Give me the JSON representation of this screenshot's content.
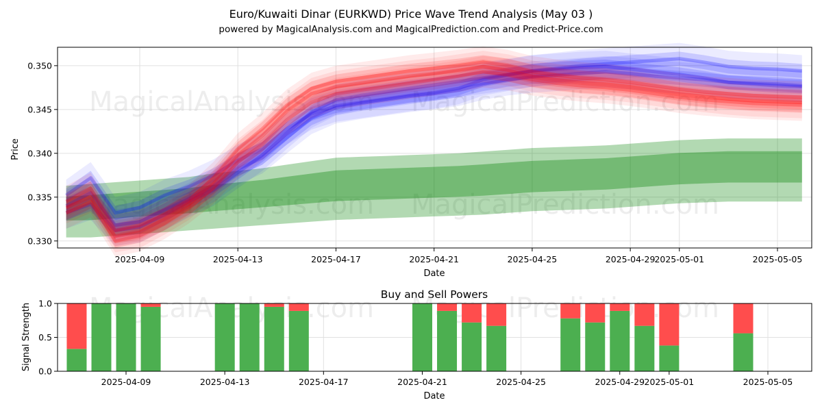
{
  "chart_data": [
    {
      "type": "area",
      "title": "Euro/Kuwaiti Dinar (EURKWD) Price Wave Trend Analysis (May 03 )",
      "subtitle": "powered by MagicalAnalysis.com and MagicalPrediction.com and Predict-Price.com",
      "xlabel": "Date",
      "ylabel": "Price",
      "x_ticks": [
        "2025-04-09",
        "2025-04-13",
        "2025-04-17",
        "2025-04-21",
        "2025-04-25",
        "2025-04-29",
        "2025-05-01",
        "2025-05-05"
      ],
      "y_ticks": [
        "0.330",
        "0.335",
        "0.340",
        "0.345",
        "0.350"
      ],
      "ylim": [
        0.3292,
        0.3521
      ],
      "grid": true,
      "x_dates": [
        "2025-04-06",
        "2025-04-07",
        "2025-04-08",
        "2025-04-09",
        "2025-04-10",
        "2025-04-11",
        "2025-04-12",
        "2025-04-13",
        "2025-04-14",
        "2025-04-15",
        "2025-04-16",
        "2025-04-17",
        "2025-04-18",
        "2025-04-19",
        "2025-04-20",
        "2025-04-21",
        "2025-04-22",
        "2025-04-23",
        "2025-04-24",
        "2025-04-25",
        "2025-04-26",
        "2025-04-27",
        "2025-04-28",
        "2025-04-29",
        "2025-04-30",
        "2025-05-01",
        "2025-05-02",
        "2025-05-03",
        "2025-05-04",
        "2025-05-05",
        "2025-05-06"
      ],
      "series": [
        {
          "color": "#0000ff",
          "values": [
            0.3352,
            0.3372,
            0.3332,
            0.3338,
            0.3352,
            0.3362,
            0.3375,
            0.3392,
            0.3405,
            0.3428,
            0.3445,
            0.3454,
            0.3458,
            0.3462,
            0.3466,
            0.3469,
            0.3474,
            0.3484,
            0.3489,
            0.3494,
            0.3496,
            0.3498,
            0.3499,
            0.3496,
            0.3493,
            0.349,
            0.3486,
            0.3481,
            0.348,
            0.3479,
            0.3477
          ]
        },
        {
          "color": "#0000ff",
          "values": [
            0.3332,
            0.3342,
            0.3312,
            0.3316,
            0.333,
            0.3345,
            0.3358,
            0.3378,
            0.3398,
            0.3423,
            0.3447,
            0.3461,
            0.3466,
            0.347,
            0.3474,
            0.3478,
            0.3482,
            0.3486,
            0.349,
            0.3494,
            0.3497,
            0.35,
            0.3502,
            0.3504,
            0.3506,
            0.3508,
            0.3504,
            0.3499,
            0.3497,
            0.3496,
            0.3494
          ]
        },
        {
          "color": "#0000ff",
          "values": [
            0.334,
            0.3355,
            0.3318,
            0.3322,
            0.3335,
            0.3348,
            0.3362,
            0.3382,
            0.3395,
            0.3418,
            0.344,
            0.3452,
            0.3457,
            0.3461,
            0.3465,
            0.3468,
            0.3472,
            0.3479,
            0.3484,
            0.3487,
            0.3489,
            0.3491,
            0.3493,
            0.3491,
            0.3488,
            0.3486,
            0.3484,
            0.3481,
            0.3479,
            0.3477,
            0.3476
          ]
        },
        {
          "color": "#ff0000",
          "values": [
            0.3338,
            0.335,
            0.3305,
            0.331,
            0.3325,
            0.3342,
            0.3366,
            0.3398,
            0.342,
            0.3448,
            0.3468,
            0.3476,
            0.348,
            0.3484,
            0.3488,
            0.3491,
            0.3495,
            0.3499,
            0.3495,
            0.3488,
            0.3484,
            0.3481,
            0.3479,
            0.3476,
            0.3472,
            0.3468,
            0.3465,
            0.3462,
            0.346,
            0.3459,
            0.3458
          ]
        },
        {
          "color": "#ff0000",
          "values": [
            0.3332,
            0.3345,
            0.33,
            0.3306,
            0.332,
            0.3338,
            0.336,
            0.339,
            0.341,
            0.3438,
            0.3458,
            0.3468,
            0.3472,
            0.3476,
            0.348,
            0.3484,
            0.3488,
            0.3493,
            0.349,
            0.3484,
            0.348,
            0.3477,
            0.3475,
            0.3472,
            0.3468,
            0.3464,
            0.3461,
            0.3459,
            0.3457,
            0.3456,
            0.3455
          ]
        },
        {
          "color": "#ff0000",
          "values": [
            0.3345,
            0.336,
            0.3312,
            0.3318,
            0.333,
            0.3346,
            0.3372,
            0.3405,
            0.3428,
            0.3455,
            0.3474,
            0.3482,
            0.3486,
            0.349,
            0.3494,
            0.3497,
            0.35,
            0.3504,
            0.35,
            0.3493,
            0.3489,
            0.3486,
            0.3484,
            0.3481,
            0.3477,
            0.3473,
            0.347,
            0.3468,
            0.3466,
            0.3465,
            0.3464
          ]
        }
      ],
      "green_band": {
        "color": "#008000",
        "upper": [
          0.3358,
          0.336,
          0.3362,
          0.3364,
          0.3366,
          0.3368,
          0.3372,
          0.3375,
          0.3378,
          0.3382,
          0.3386,
          0.339,
          0.3391,
          0.3392,
          0.3393,
          0.3394,
          0.3395,
          0.3397,
          0.3399,
          0.3401,
          0.3402,
          0.3403,
          0.3404,
          0.3406,
          0.3408,
          0.341,
          0.3411,
          0.3412,
          0.3412,
          0.3412,
          0.3412
        ],
        "lower": [
          0.3316,
          0.3316,
          0.3318,
          0.332,
          0.3322,
          0.3324,
          0.3326,
          0.3328,
          0.333,
          0.3332,
          0.3334,
          0.3336,
          0.3337,
          0.3338,
          0.3339,
          0.334,
          0.3341,
          0.3342,
          0.3344,
          0.3346,
          0.3347,
          0.3348,
          0.3349,
          0.3351,
          0.3353,
          0.3355,
          0.3356,
          0.3357,
          0.3357,
          0.3357,
          0.3357
        ]
      }
    },
    {
      "type": "bar",
      "title": "Buy and Sell Powers",
      "xlabel": "Date",
      "ylabel": "Signal Strength",
      "x_ticks": [
        "2025-04-09",
        "2025-04-13",
        "2025-04-17",
        "2025-04-21",
        "2025-04-25",
        "2025-04-29",
        "2025-05-01",
        "2025-05-05"
      ],
      "y_ticks": [
        "0.0",
        "0.5",
        "1.0"
      ],
      "ylim": [
        0,
        1
      ],
      "grid": true,
      "series_colors": {
        "buy": "#4caf50",
        "sell": "#ff4d4d"
      },
      "bars": [
        {
          "date": "2025-04-08",
          "buy": 0.33,
          "sell": 0.67
        },
        {
          "date": "2025-04-09",
          "buy": 1.0,
          "sell": 0.0
        },
        {
          "date": "2025-04-10",
          "buy": 1.0,
          "sell": 0.0
        },
        {
          "date": "2025-04-11",
          "buy": 0.95,
          "sell": 0.05
        },
        {
          "date": "2025-04-14",
          "buy": 1.0,
          "sell": 0.0
        },
        {
          "date": "2025-04-15",
          "buy": 1.0,
          "sell": 0.0
        },
        {
          "date": "2025-04-16",
          "buy": 0.95,
          "sell": 0.05
        },
        {
          "date": "2025-04-17",
          "buy": 0.89,
          "sell": 0.11
        },
        {
          "date": "2025-04-22",
          "buy": 1.0,
          "sell": 0.0
        },
        {
          "date": "2025-04-23",
          "buy": 0.89,
          "sell": 0.11
        },
        {
          "date": "2025-04-24",
          "buy": 0.72,
          "sell": 0.28
        },
        {
          "date": "2025-04-25",
          "buy": 0.67,
          "sell": 0.33
        },
        {
          "date": "2025-04-28",
          "buy": 0.78,
          "sell": 0.22
        },
        {
          "date": "2025-04-29",
          "buy": 0.72,
          "sell": 0.28
        },
        {
          "date": "2025-04-30",
          "buy": 0.89,
          "sell": 0.11
        },
        {
          "date": "2025-05-01",
          "buy": 0.67,
          "sell": 0.33
        },
        {
          "date": "2025-05-02",
          "buy": 0.38,
          "sell": 0.62
        },
        {
          "date": "2025-05-05",
          "buy": 0.56,
          "sell": 0.44
        }
      ]
    }
  ],
  "watermarks": [
    "MagicalAnalysis.com",
    "MagicalPrediction.com"
  ]
}
